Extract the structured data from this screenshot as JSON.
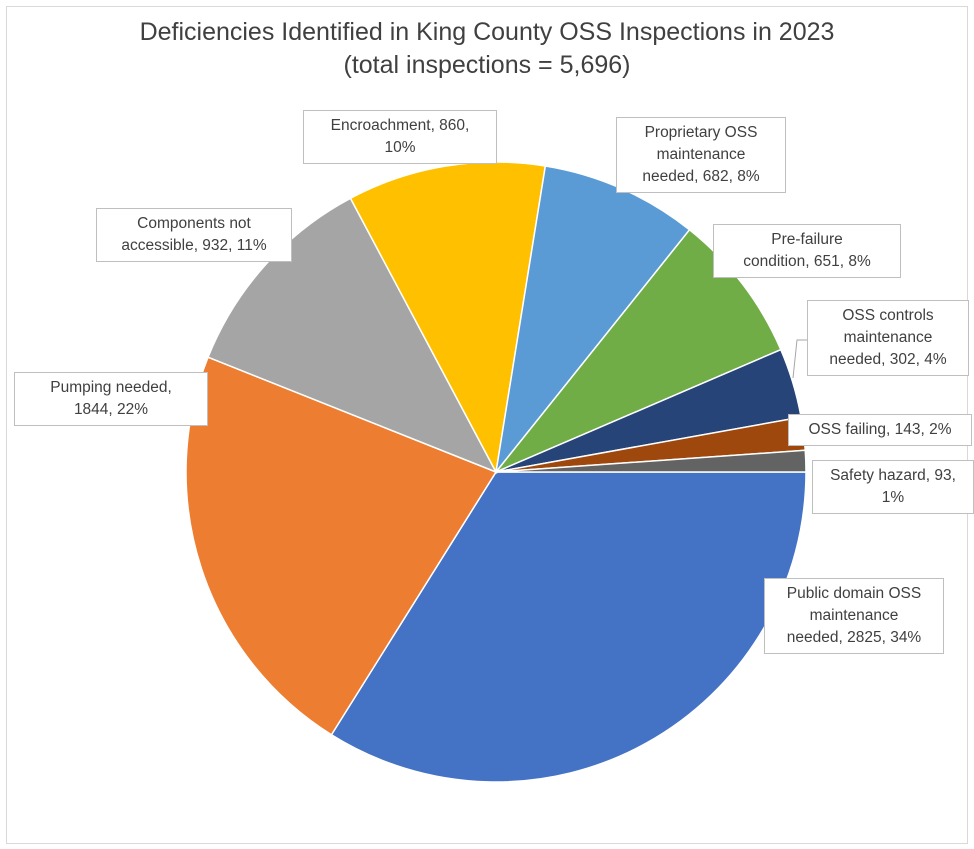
{
  "chart_data": {
    "type": "pie",
    "title": "Deficiencies Identified in King County OSS Inspections in 2023",
    "subtitle": "(total inspections = 5,696)",
    "slices": [
      {
        "key": "public-domain",
        "name": "Public domain OSS maintenance needed",
        "value": 2825,
        "percent": "34%",
        "color": "#4472C4",
        "label_lines": [
          "Public domain OSS",
          "maintenance",
          "needed, 2825, 34%"
        ]
      },
      {
        "key": "pumping",
        "name": "Pumping needed",
        "value": 1844,
        "percent": "22%",
        "color": "#ED7D31",
        "label_lines": [
          "Pumping needed,",
          "1844, 22%"
        ]
      },
      {
        "key": "components",
        "name": "Components not accessible",
        "value": 932,
        "percent": "11%",
        "color": "#A5A5A5",
        "label_lines": [
          "Components not",
          "accessible, 932, 11%"
        ]
      },
      {
        "key": "encroachment",
        "name": "Encroachment",
        "value": 860,
        "percent": "10%",
        "color": "#FFC000",
        "label_lines": [
          "Encroachment, 860,",
          "10%"
        ]
      },
      {
        "key": "proprietary",
        "name": "Proprietary OSS maintenance needed",
        "value": 682,
        "percent": "8%",
        "color": "#5B9BD5",
        "label_lines": [
          "Proprietary OSS",
          "maintenance",
          "needed, 682, 8%"
        ]
      },
      {
        "key": "pre-failure",
        "name": "Pre-failure condition",
        "value": 651,
        "percent": "8%",
        "color": "#70AD47",
        "label_lines": [
          "Pre-failure",
          "condition, 651, 8%"
        ]
      },
      {
        "key": "oss-controls",
        "name": "OSS controls maintenance needed",
        "value": 302,
        "percent": "4%",
        "color": "#264478",
        "label_lines": [
          "OSS controls",
          "maintenance",
          "needed, 302, 4%"
        ]
      },
      {
        "key": "oss-failing",
        "name": "OSS failing",
        "value": 143,
        "percent": "2%",
        "color": "#9E480E",
        "label_lines": [
          "OSS failing, 143, 2%"
        ]
      },
      {
        "key": "safety-hazard",
        "name": "Safety hazard",
        "value": 93,
        "percent": "1%",
        "color": "#636363",
        "label_lines": [
          "Safety hazard, 93,",
          "1%"
        ]
      }
    ]
  }
}
